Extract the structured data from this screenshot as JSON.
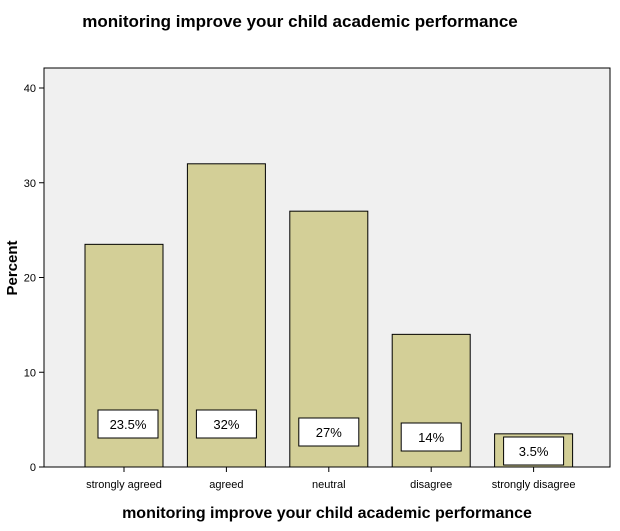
{
  "chart_data": {
    "type": "bar",
    "title": "monitoring improve your child academic performance",
    "xlabel": "monitoring improve your child academic performance",
    "ylabel": "Percent",
    "categories": [
      "strongly agreed",
      "agreed",
      "neutral",
      "disagree",
      "strongly disagree"
    ],
    "values": [
      23.5,
      32,
      27,
      14,
      3.5
    ],
    "data_labels": [
      "23.5%",
      "32%",
      "27%",
      "14%",
      "3.5%"
    ],
    "yticks": [
      "0",
      "10",
      "20",
      "30",
      "40"
    ],
    "ylim": [
      0,
      40
    ],
    "grid": false,
    "legend": "none",
    "colors": {
      "bar_fill": "#d3cf97",
      "bar_stroke": "#000000",
      "plot_background": "#f0f0f0",
      "label_box_fill": "#ffffff"
    }
  }
}
